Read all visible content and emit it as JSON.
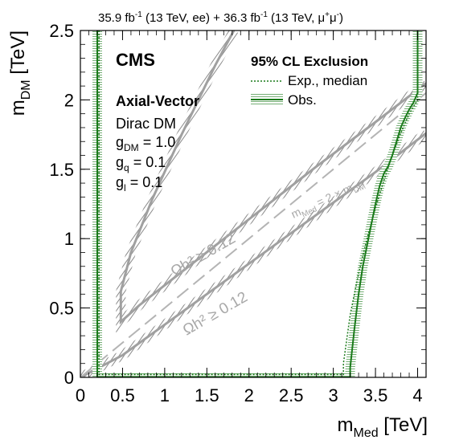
{
  "header": {
    "lumi_left_value": "35.9 fb",
    "lumi_left_exp": "-1",
    "lumi_left_tail": " (13 TeV, ee) + ",
    "lumi_right_value": "36.3 fb",
    "lumi_right_exp": "-1",
    "lumi_right_mid": " (13 TeV, μ",
    "lumi_right_mu_plus": "+",
    "lumi_right_mu": "μ",
    "lumi_right_mu_minus": "-",
    "lumi_right_close": ")"
  },
  "labels": {
    "cms": "CMS",
    "model": "Axial-Vector",
    "dm_type": "Dirac DM",
    "g_dm_main": "g",
    "g_dm_sub": "DM",
    "g_dm_val": " = 1.0",
    "g_q_main": "g",
    "g_q_sub": "q",
    "g_q_val": " = 0.1",
    "g_l_main": "g",
    "g_l_sub": "l",
    "g_l_val": " = 0.1",
    "legend_title": "95% CL Exclusion",
    "legend_exp": "Exp., median",
    "legend_obs": "Obs.",
    "relic_upper": "Ωh² ≥ 0.12",
    "relic_lower": "Ωh² ≥ 0.12",
    "diag_m": "m",
    "diag_med_sub": "Med",
    "diag_eq": " = 2 × m",
    "diag_dm_sub": "DM"
  },
  "chart_data": {
    "type": "line",
    "xlabel_main": "m",
    "xlabel_sub": "Med",
    "xlabel_unit": " [TeV]",
    "ylabel_main": "m",
    "ylabel_sub": "DM",
    "ylabel_unit": " [TeV]",
    "xlim": [
      0,
      4.1
    ],
    "ylim": [
      0,
      2.5
    ],
    "xticks": [
      0,
      0.5,
      1,
      1.5,
      2,
      2.5,
      3,
      3.5,
      4
    ],
    "xtick_labels": [
      "0",
      "0.5",
      "1",
      "1.5",
      "2",
      "2.5",
      "3",
      "3.5",
      "4"
    ],
    "yticks": [
      0,
      0.5,
      1,
      1.5,
      2,
      2.5
    ],
    "ytick_labels": [
      "0",
      "0.5",
      "1",
      "1.5",
      "2",
      "2.5"
    ],
    "colors": {
      "observed": "#1a7a1a",
      "relic": "#a0a0a0",
      "diagonal": "#b4b4b4",
      "axis": "#000000"
    },
    "series": [
      {
        "name": "Obs.",
        "style": "solid-hatched",
        "x": [
          0.2,
          0.2,
          3.2,
          3.2,
          3.25,
          3.3,
          3.35,
          3.4,
          3.45,
          3.5,
          3.55,
          3.6,
          3.65,
          3.7,
          3.75,
          3.8,
          3.85,
          3.9,
          3.95,
          4.0,
          4.0
        ],
        "y": [
          2.5,
          0.0,
          0.0,
          0.07,
          0.35,
          0.6,
          0.8,
          0.95,
          1.1,
          1.25,
          1.38,
          1.47,
          1.52,
          1.6,
          1.7,
          1.8,
          1.87,
          1.93,
          1.98,
          2.05,
          2.5
        ]
      },
      {
        "name": "Exp., median",
        "style": "dotted",
        "x": [
          0.22,
          0.22,
          3.12,
          3.12,
          3.2,
          3.3,
          3.4,
          3.5,
          3.6,
          3.7,
          3.8,
          3.9,
          4.0,
          4.0
        ],
        "y": [
          2.5,
          0.02,
          0.02,
          0.1,
          0.45,
          0.75,
          1.0,
          1.22,
          1.42,
          1.6,
          1.76,
          1.9,
          2.0,
          2.5
        ]
      }
    ],
    "relic_curves": [
      {
        "x": [
          1.82,
          1.6,
          1.2,
          0.85,
          0.6,
          0.48,
          0.48,
          0.7,
          1.2,
          2.0,
          2.8,
          3.5,
          4.1
        ],
        "y": [
          2.5,
          2.25,
          1.75,
          1.28,
          0.9,
          0.62,
          0.4,
          0.52,
          0.76,
          1.14,
          1.52,
          1.84,
          2.12
        ]
      },
      {
        "x": [
          0.0,
          0.5,
          1.0,
          1.5,
          2.0,
          2.5,
          3.0,
          3.5,
          4.1
        ],
        "y": [
          0.0,
          0.16,
          0.38,
          0.6,
          0.82,
          1.04,
          1.26,
          1.48,
          1.76
        ]
      }
    ],
    "diagonal": {
      "x": [
        0.0,
        4.1
      ],
      "y": [
        0.0,
        2.05
      ]
    }
  }
}
